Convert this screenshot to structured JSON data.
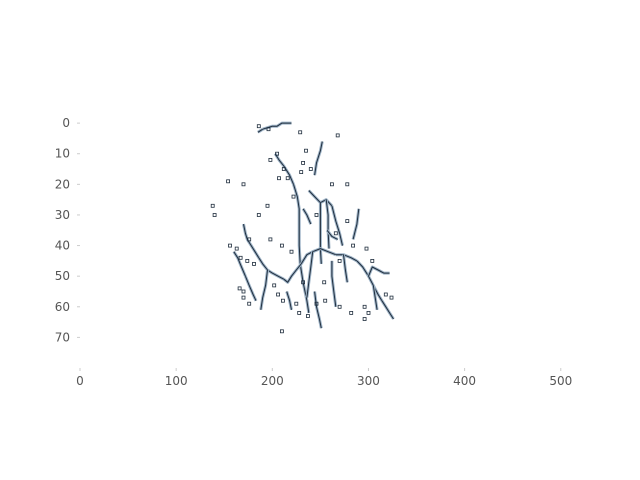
{
  "chart_data": {
    "type": "heatmap",
    "title": "",
    "xlabel": "",
    "ylabel": "",
    "xlim": [
      0,
      520
    ],
    "ylim": [
      80,
      -2
    ],
    "y_inverted": true,
    "grid": false,
    "x_ticks": [
      {
        "value": 0,
        "label": "0"
      },
      {
        "value": 100,
        "label": "100"
      },
      {
        "value": 200,
        "label": "200"
      },
      {
        "value": 300,
        "label": "300"
      },
      {
        "value": 400,
        "label": "400"
      },
      {
        "value": 500,
        "label": "500"
      }
    ],
    "y_ticks": [
      {
        "value": 0,
        "label": "0"
      },
      {
        "value": 10,
        "label": "10"
      },
      {
        "value": 20,
        "label": "20"
      },
      {
        "value": 30,
        "label": "30"
      },
      {
        "value": 40,
        "label": "40"
      },
      {
        "value": 50,
        "label": "50"
      },
      {
        "value": 60,
        "label": "60"
      },
      {
        "value": 70,
        "label": "70"
      }
    ],
    "colors": {
      "edge": "#1f2d3d",
      "edge_light": "#9fb4c7",
      "background": "#ffffff",
      "tick": "#555555"
    },
    "edge_strokes": [
      [
        [
          190,
          2
        ],
        [
          200,
          1
        ],
        [
          205,
          1
        ],
        [
          210,
          0
        ],
        [
          220,
          0
        ]
      ],
      [
        [
          185,
          3
        ],
        [
          190,
          2
        ]
      ],
      [
        [
          203,
          10
        ],
        [
          207,
          12
        ],
        [
          212,
          14
        ],
        [
          218,
          17
        ],
        [
          222,
          20
        ]
      ],
      [
        [
          222,
          20
        ],
        [
          226,
          24
        ],
        [
          228,
          28
        ],
        [
          228,
          34
        ],
        [
          228,
          40
        ],
        [
          229,
          46
        ]
      ],
      [
        [
          229,
          46
        ],
        [
          232,
          52
        ],
        [
          236,
          58
        ],
        [
          238,
          62
        ]
      ],
      [
        [
          238,
          22
        ],
        [
          244,
          24
        ],
        [
          250,
          26
        ],
        [
          256,
          25
        ],
        [
          262,
          27
        ]
      ],
      [
        [
          244,
          17
        ],
        [
          246,
          13
        ],
        [
          250,
          9
        ],
        [
          252,
          6
        ]
      ],
      [
        [
          262,
          27
        ],
        [
          266,
          32
        ],
        [
          270,
          36
        ],
        [
          273,
          40
        ]
      ],
      [
        [
          250,
          26
        ],
        [
          250,
          31
        ],
        [
          250,
          36
        ],
        [
          250,
          41
        ],
        [
          251,
          46
        ]
      ],
      [
        [
          256,
          25
        ],
        [
          258,
          30
        ],
        [
          258,
          35
        ],
        [
          259,
          41
        ]
      ],
      [
        [
          170,
          33
        ],
        [
          172,
          36
        ],
        [
          174,
          38
        ],
        [
          178,
          40
        ],
        [
          182,
          42
        ],
        [
          186,
          44
        ]
      ],
      [
        [
          186,
          44
        ],
        [
          190,
          46
        ],
        [
          195,
          48
        ],
        [
          200,
          49
        ],
        [
          206,
          50
        ],
        [
          212,
          51
        ]
      ],
      [
        [
          212,
          51
        ],
        [
          216,
          52
        ],
        [
          220,
          50
        ],
        [
          225,
          48
        ],
        [
          230,
          46
        ]
      ],
      [
        [
          230,
          46
        ],
        [
          236,
          43
        ],
        [
          242,
          42
        ],
        [
          250,
          41
        ],
        [
          258,
          42
        ],
        [
          266,
          43
        ]
      ],
      [
        [
          266,
          43
        ],
        [
          274,
          43
        ],
        [
          282,
          44
        ],
        [
          288,
          45
        ]
      ],
      [
        [
          288,
          45
        ],
        [
          294,
          47
        ],
        [
          300,
          50
        ],
        [
          305,
          53
        ],
        [
          310,
          56
        ],
        [
          314,
          58
        ]
      ],
      [
        [
          262,
          45
        ],
        [
          262,
          50
        ],
        [
          264,
          55
        ],
        [
          266,
          60
        ]
      ],
      [
        [
          242,
          42
        ],
        [
          240,
          47
        ],
        [
          238,
          52
        ],
        [
          236,
          57
        ]
      ],
      [
        [
          274,
          43
        ],
        [
          276,
          48
        ],
        [
          278,
          52
        ]
      ],
      [
        [
          284,
          38
        ],
        [
          288,
          33
        ],
        [
          290,
          28
        ]
      ],
      [
        [
          300,
          50
        ],
        [
          304,
          47
        ],
        [
          310,
          48
        ],
        [
          316,
          49
        ],
        [
          322,
          49
        ]
      ],
      [
        [
          305,
          53
        ],
        [
          307,
          57
        ],
        [
          309,
          61
        ]
      ],
      [
        [
          314,
          58
        ],
        [
          318,
          60
        ],
        [
          322,
          62
        ],
        [
          326,
          64
        ]
      ],
      [
        [
          195,
          48
        ],
        [
          193,
          53
        ],
        [
          190,
          57
        ],
        [
          188,
          61
        ]
      ],
      [
        [
          160,
          42
        ],
        [
          164,
          44
        ],
        [
          168,
          47
        ],
        [
          172,
          50
        ]
      ],
      [
        [
          172,
          50
        ],
        [
          176,
          53
        ],
        [
          180,
          56
        ],
        [
          183,
          58
        ]
      ],
      [
        [
          215,
          55
        ],
        [
          218,
          58
        ],
        [
          220,
          61
        ]
      ],
      [
        [
          244,
          55
        ],
        [
          246,
          60
        ],
        [
          249,
          64
        ],
        [
          251,
          67
        ]
      ],
      [
        [
          257,
          35
        ],
        [
          262,
          37
        ],
        [
          268,
          38
        ]
      ],
      [
        [
          232,
          28
        ],
        [
          236,
          30
        ],
        [
          240,
          33
        ]
      ]
    ],
    "edge_dots": [
      [
        186,
        1
      ],
      [
        196,
        2
      ],
      [
        229,
        3
      ],
      [
        268,
        4
      ],
      [
        205,
        10
      ],
      [
        235,
        9
      ],
      [
        198,
        12
      ],
      [
        212,
        15
      ],
      [
        216,
        18
      ],
      [
        207,
        18
      ],
      [
        232,
        13
      ],
      [
        240,
        15
      ],
      [
        262,
        20
      ],
      [
        278,
        20
      ],
      [
        170,
        20
      ],
      [
        154,
        19
      ],
      [
        138,
        27
      ],
      [
        140,
        30
      ],
      [
        195,
        27
      ],
      [
        156,
        40
      ],
      [
        163,
        41
      ],
      [
        167,
        44
      ],
      [
        174,
        45
      ],
      [
        181,
        46
      ],
      [
        198,
        38
      ],
      [
        210,
        40
      ],
      [
        220,
        42
      ],
      [
        270,
        45
      ],
      [
        284,
        40
      ],
      [
        298,
        41
      ],
      [
        304,
        45
      ],
      [
        166,
        54
      ],
      [
        170,
        57
      ],
      [
        176,
        59
      ],
      [
        170,
        55
      ],
      [
        206,
        56
      ],
      [
        211,
        58
      ],
      [
        225,
        59
      ],
      [
        228,
        62
      ],
      [
        237,
        63
      ],
      [
        255,
        58
      ],
      [
        270,
        60
      ],
      [
        282,
        62
      ],
      [
        296,
        64
      ],
      [
        300,
        62
      ],
      [
        210,
        68
      ],
      [
        246,
        59
      ],
      [
        232,
        52
      ],
      [
        186,
        30
      ],
      [
        222,
        24
      ],
      [
        230,
        16
      ],
      [
        246,
        30
      ],
      [
        254,
        52
      ],
      [
        202,
        53
      ],
      [
        176,
        38
      ],
      [
        266,
        36
      ],
      [
        278,
        32
      ],
      [
        296,
        60
      ],
      [
        318,
        56
      ],
      [
        324,
        57
      ]
    ]
  }
}
